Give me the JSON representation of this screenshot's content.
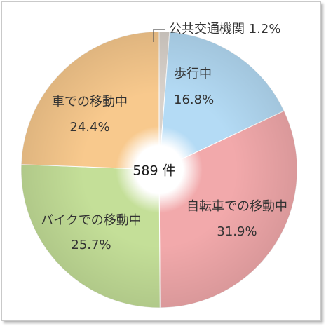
{
  "chart_data": {
    "type": "pie",
    "title": "",
    "center_label": "589 件",
    "slices": [
      {
        "name": "公共交通機関",
        "value": 1.2,
        "label": "1.2%",
        "color": "#d9d2cb"
      },
      {
        "name": "歩行中",
        "value": 16.8,
        "label": "16.8%",
        "color": "#b4dbf5"
      },
      {
        "name": "自転車での移動中",
        "value": 31.9,
        "label": "31.9%",
        "color": "#f2a9ab"
      },
      {
        "name": "バイクでの移動中",
        "value": 25.7,
        "label": "25.7%",
        "color": "#c4df98"
      },
      {
        "name": "車での移動中",
        "value": 24.4,
        "label": "24.4%",
        "color": "#f8c98d"
      }
    ]
  }
}
